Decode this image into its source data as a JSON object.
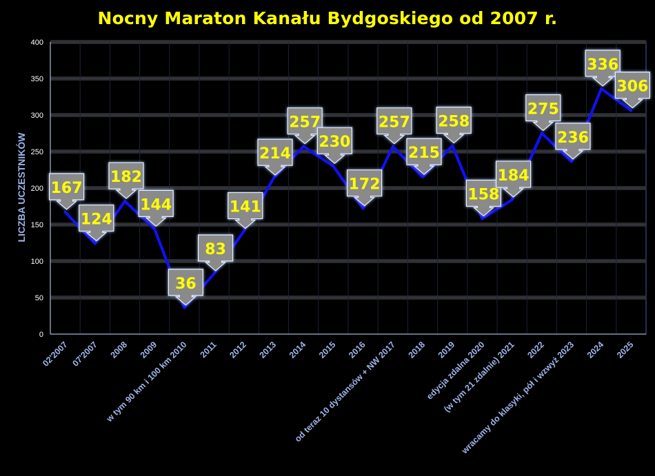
{
  "chart_data": {
    "type": "line",
    "title": "Nocny Maraton Kanału Bydgoskiego od 2007 r.",
    "ylabel": "LICZBA UCZESTNIKÓW",
    "xlabel": "",
    "ylim": [
      0,
      400
    ],
    "yticks": [
      0,
      50,
      100,
      150,
      200,
      250,
      300,
      350,
      400
    ],
    "categories": [
      "02'2007",
      "07'2007",
      "2008",
      "2009",
      "w tym 90 km i 100 km 2010",
      "2011",
      "2012",
      "2013",
      "2014",
      "2015",
      "2016",
      "od teraz 10 dystansów + NW 2017",
      "2018",
      "2019",
      "edycja zdalna 2020",
      "(w tym 21 zdalnie) 2021",
      "2022",
      "wracamy do klasyki, pół i wzwyż 2023",
      "2024",
      "2025"
    ],
    "values": [
      167,
      124,
      182,
      144,
      36,
      83,
      141,
      214,
      257,
      230,
      172,
      257,
      215,
      258,
      158,
      184,
      275,
      236,
      336,
      306
    ],
    "grid": true,
    "line_color": "#1010ff",
    "label_color": "#ffff00",
    "callout_color": "#8a8a8a",
    "grid_band_color": "#2b2b2b"
  }
}
